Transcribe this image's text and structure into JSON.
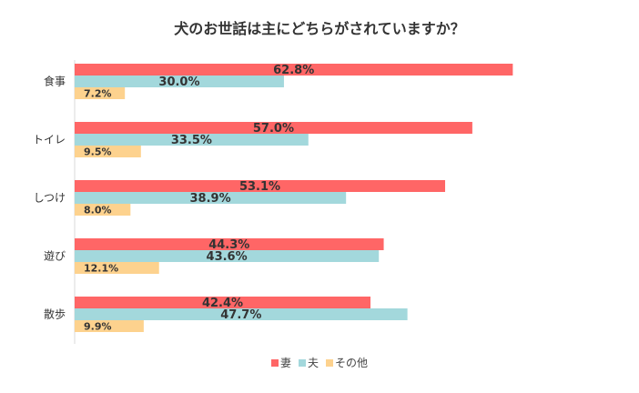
{
  "chart_data": {
    "type": "bar",
    "orientation": "horizontal",
    "title": "犬のお世話は主にどちらがされていますか？",
    "categories": [
      "食事",
      "トイレ",
      "しつけ",
      "遊び",
      "散歩"
    ],
    "series": [
      {
        "name": "妻",
        "values": [
          62.8,
          57.0,
          53.1,
          44.3,
          42.4
        ],
        "color": "#ff6666"
      },
      {
        "name": "夫",
        "values": [
          30.0,
          33.5,
          38.9,
          43.6,
          47.7
        ],
        "color": "#a3d8dc"
      },
      {
        "name": "その他",
        "values": [
          7.2,
          9.5,
          8.0,
          12.1,
          9.9
        ],
        "color": "#fdd28e"
      }
    ],
    "value_suffix": "%",
    "xlim": [
      0,
      100
    ],
    "grid": false,
    "legend_position": "bottom"
  }
}
